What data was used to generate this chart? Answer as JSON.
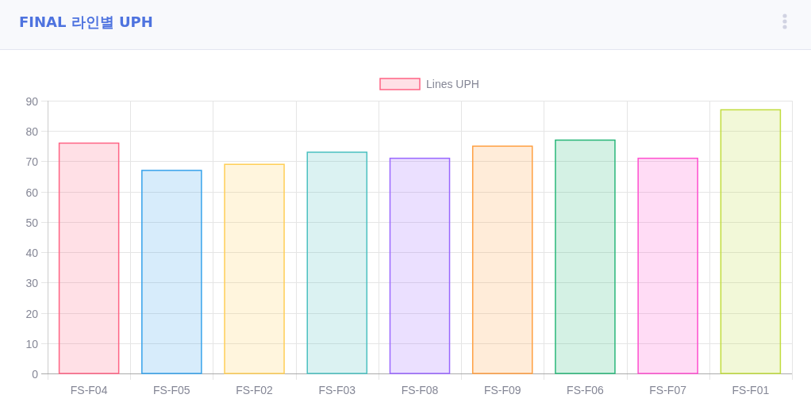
{
  "chart_data": {
    "type": "bar",
    "title": "FINAL 라인별 UPH",
    "categories": [
      "FS-F04",
      "FS-F05",
      "FS-F02",
      "FS-F03",
      "FS-F08",
      "FS-F09",
      "FS-F06",
      "FS-F07",
      "FS-F01"
    ],
    "series": [
      {
        "name": "Lines UPH",
        "values": [
          76,
          67,
          69,
          73,
          71,
          75,
          77,
          71,
          87
        ],
        "colors": [
          "#ff6384",
          "#36a2eb",
          "#ffce56",
          "#4bc0c0",
          "#9966ff",
          "#ff9f40",
          "#2ab77a",
          "#ff4fcf",
          "#c0dc3c"
        ]
      }
    ],
    "ylim": [
      0,
      90
    ],
    "yticks": [
      0,
      10,
      20,
      30,
      40,
      50,
      60,
      70,
      80,
      90
    ],
    "grid": true,
    "legend": "top"
  }
}
